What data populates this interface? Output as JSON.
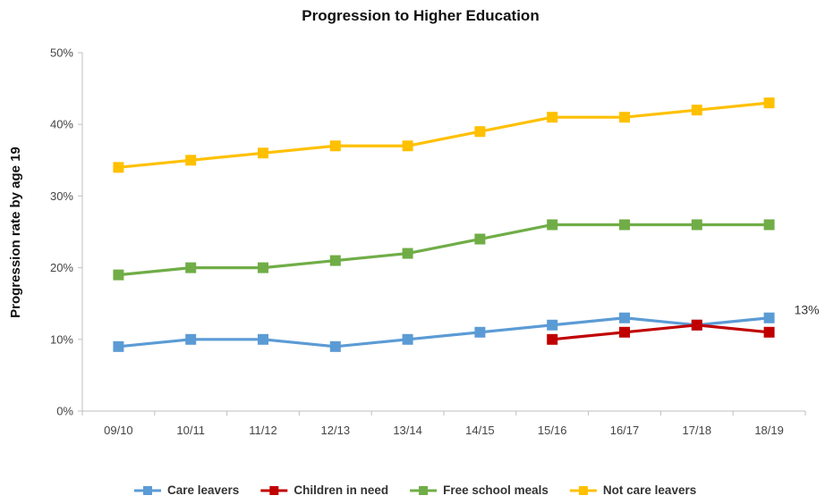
{
  "chart_data": {
    "type": "line",
    "title": "Progression to Higher Education",
    "xlabel": "",
    "ylabel": "Progression rate by age 19",
    "categories": [
      "09/10",
      "10/11",
      "11/12",
      "12/13",
      "13/14",
      "14/15",
      "15/16",
      "16/17",
      "17/18",
      "18/19"
    ],
    "y_ticks": [
      "0%",
      "10%",
      "20%",
      "30%",
      "40%",
      "50%"
    ],
    "ylim": [
      0,
      50
    ],
    "grid": false,
    "legend_position": "bottom",
    "series": [
      {
        "name": "Care leavers",
        "color": "#5B9BD5",
        "values": [
          9,
          10,
          10,
          9,
          10,
          11,
          12,
          13,
          12,
          13
        ]
      },
      {
        "name": "Children in need",
        "color": "#C00000",
        "values": [
          null,
          null,
          null,
          null,
          null,
          null,
          10,
          11,
          12,
          11
        ]
      },
      {
        "name": "Free school meals",
        "color": "#70AD47",
        "values": [
          19,
          20,
          20,
          21,
          22,
          24,
          26,
          26,
          26,
          26
        ]
      },
      {
        "name": "Not care leavers",
        "color": "#FFC000",
        "values": [
          34,
          35,
          36,
          37,
          37,
          39,
          41,
          41,
          42,
          43
        ]
      }
    ],
    "annotations": [
      {
        "text": "13%",
        "series": "Care leavers",
        "category": "18/19"
      }
    ]
  }
}
